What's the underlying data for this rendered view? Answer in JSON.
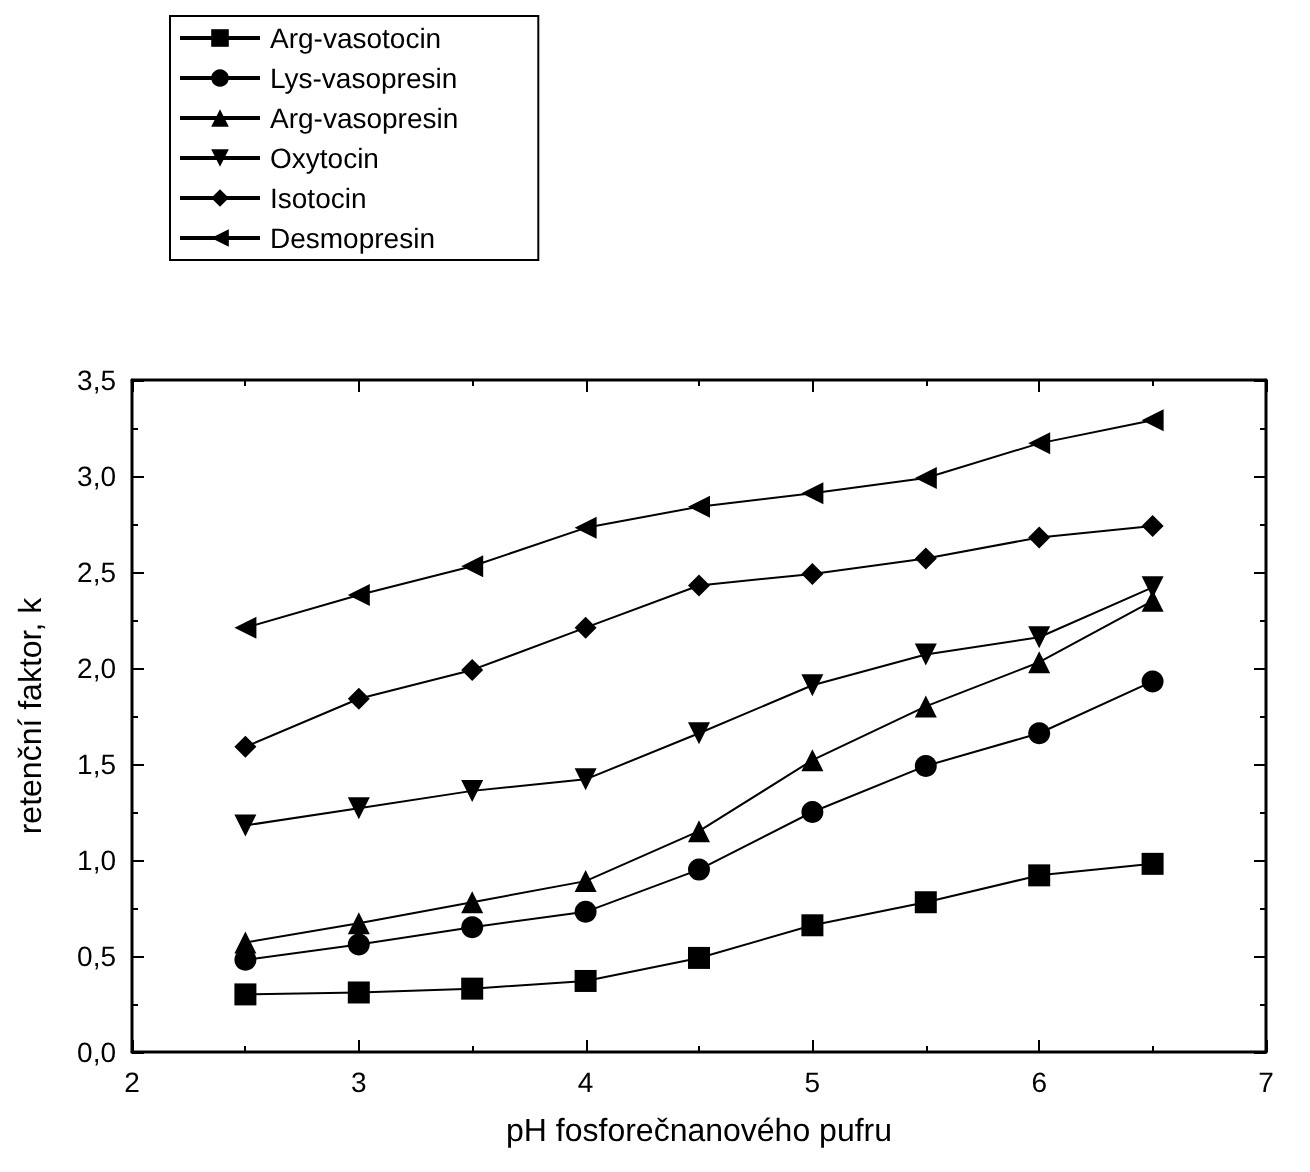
{
  "chart_data": {
    "type": "line",
    "xlabel": "pH fosforečnanového pufru",
    "ylabel": "retenční faktor, k",
    "x": [
      2.5,
      3,
      3.5,
      4,
      4.5,
      5,
      5.5,
      6,
      6.5
    ],
    "series": [
      {
        "name": "Arg-vasotocin",
        "color": "#000000",
        "marker": "square",
        "values": [
          0.3,
          0.31,
          0.33,
          0.37,
          0.49,
          0.66,
          0.78,
          0.92,
          0.98
        ]
      },
      {
        "name": "Lys-vasopresin",
        "color": "#000000",
        "marker": "circle",
        "values": [
          0.48,
          0.56,
          0.65,
          0.73,
          0.95,
          1.25,
          1.49,
          1.66,
          1.93
        ]
      },
      {
        "name": "Arg-vasopresin",
        "color": "#000000",
        "marker": "triangle",
        "values": [
          0.57,
          0.67,
          0.78,
          0.89,
          1.15,
          1.52,
          1.8,
          2.03,
          2.35
        ]
      },
      {
        "name": "Oxytocin",
        "color": "#000000",
        "marker": "triangle-down",
        "values": [
          1.18,
          1.27,
          1.36,
          1.42,
          1.66,
          1.91,
          2.07,
          2.16,
          2.42
        ]
      },
      {
        "name": "Isotocin",
        "color": "#000000",
        "marker": "diamond",
        "values": [
          1.59,
          1.84,
          1.99,
          2.21,
          2.43,
          2.49,
          2.57,
          2.68,
          2.74
        ]
      },
      {
        "name": "Desmopresin",
        "color": "#000000",
        "marker": "triangle-left",
        "values": [
          2.21,
          2.38,
          2.53,
          2.73,
          2.84,
          2.91,
          2.99,
          3.17,
          3.29
        ]
      }
    ],
    "xlim": [
      2,
      7
    ],
    "xticks": [
      2,
      3,
      4,
      5,
      6,
      7
    ],
    "ylim": [
      0,
      3.5
    ],
    "yticks": [
      {
        "value": 0,
        "label": "0,0"
      },
      {
        "value": 0.5,
        "label": "0,5"
      },
      {
        "value": 1,
        "label": "1,0"
      },
      {
        "value": 1.5,
        "label": "1,5"
      },
      {
        "value": 2,
        "label": "2,0"
      },
      {
        "value": 2.5,
        "label": "2,5"
      },
      {
        "value": 3,
        "label": "3,0"
      },
      {
        "value": 3.5,
        "label": "3,5"
      }
    ],
    "grid": false,
    "legend": "top left",
    "line_style": "solid"
  }
}
